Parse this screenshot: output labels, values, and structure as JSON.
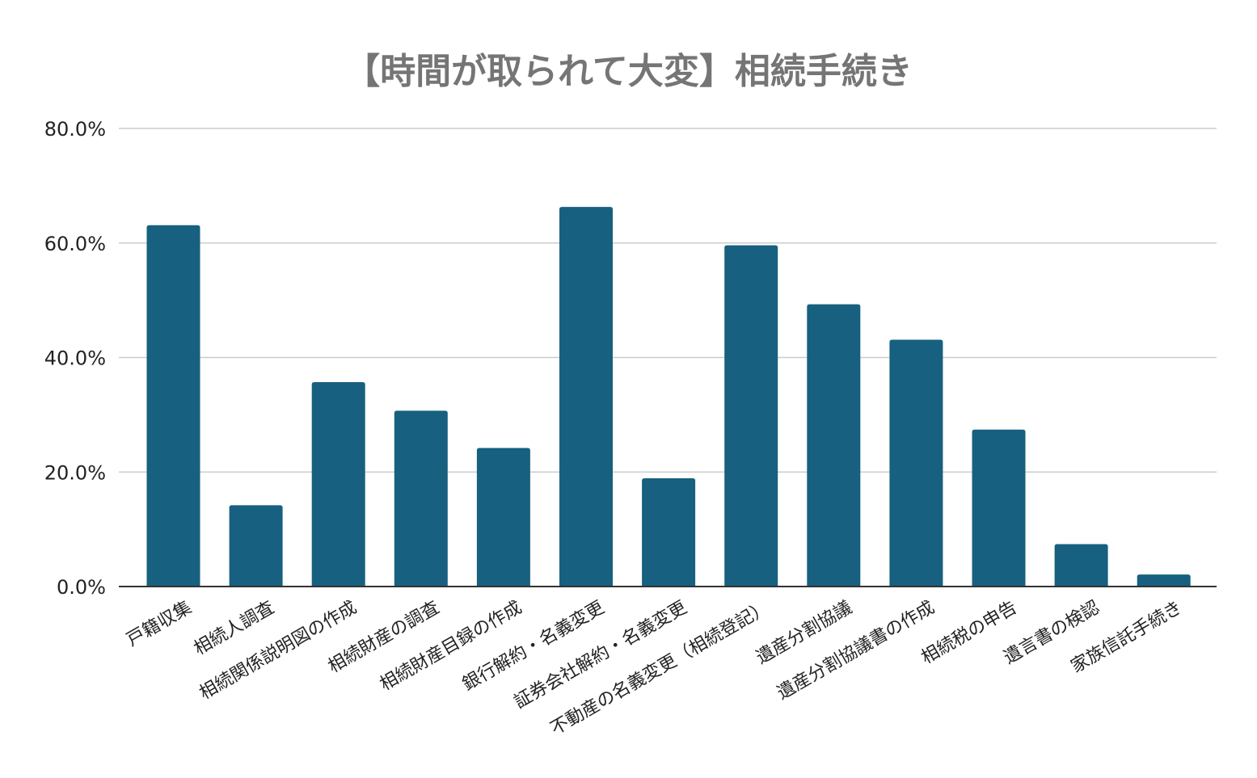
{
  "chart_data": {
    "type": "bar",
    "title": "【時間が取られて大変】相続手続き",
    "xlabel": "",
    "ylabel": "",
    "ylim": [
      0,
      80
    ],
    "ytick_values": [
      0,
      20,
      40,
      60,
      80
    ],
    "ytick_labels": [
      "0.0%",
      "20.0%",
      "40.0%",
      "60.0%",
      "80.0%"
    ],
    "grid": true,
    "legend": "none",
    "bar_color": "#17607f",
    "categories": [
      "戸籍収集",
      "相続人調査",
      "相続関係説明図の作成",
      "相続財産の調査",
      "相続財産目録の作成",
      "銀行解約・名義変更",
      "証券会社解約・名義変更",
      "不動産の名義変更（相続登記）",
      "遺産分割協議",
      "遺産分割協議書の作成",
      "相続税の申告",
      "遺言書の検認",
      "家族信託手続き"
    ],
    "values": [
      63.1,
      14.2,
      35.7,
      30.7,
      24.2,
      66.3,
      18.9,
      59.6,
      49.3,
      43.1,
      27.4,
      7.4,
      2.1
    ]
  }
}
